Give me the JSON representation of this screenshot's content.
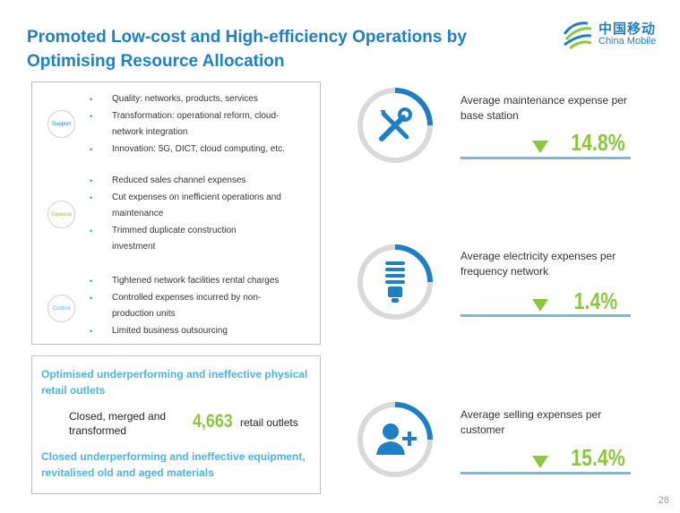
{
  "title": "Promoted Low-cost and High-efficiency Operations by Optimising Resource Allocation",
  "logo": {
    "cn": "中国移动",
    "en": "China Mobile"
  },
  "sections": [
    {
      "label": "Support",
      "color": "#1f7fc4",
      "items": [
        "Quality: networks, products, services",
        "Transformation: operational reform, cloud-network integration",
        "Innovation: 5G, DICT, cloud computing, etc."
      ]
    },
    {
      "label": "Squeeze",
      "color": "#8cc63f",
      "items": [
        "Reduced sales channel expenses",
        "Cut expenses on inefficient operations and maintenance",
        "Trimmed duplicate construction investment"
      ]
    },
    {
      "label": "Control",
      "color": "#4fb3e0",
      "items": [
        "Tightened network facilities rental charges",
        "Controlled expenses incurred by non-production units",
        "Limited business outsourcing"
      ]
    }
  ],
  "retail": {
    "heading1": "Optimised underperforming and ineffective physical retail outlets",
    "closed_label": "Closed, merged and transformed",
    "count": "4,663",
    "unit": "retail outlets",
    "heading2": "Closed underperforming and ineffective equipment, revitalised old and aged materials"
  },
  "kpis": [
    {
      "label": "Average maintenance expense per base station",
      "value": "14.8%",
      "icon": "wrench-screwdriver-icon"
    },
    {
      "label": "Average electricity expenses per frequency network",
      "value": "1.4%",
      "icon": "lightbulb-icon"
    },
    {
      "label": "Average selling expenses per customer",
      "value": "15.4%",
      "icon": "user-add-icon"
    }
  ],
  "page_number": "28",
  "colors": {
    "blue": "#1f7fc4",
    "green": "#8cc63f",
    "light_blue": "#4fb3e0",
    "ring_grey": "#d9d9d9",
    "ring_blue": "#1f7fc4"
  }
}
